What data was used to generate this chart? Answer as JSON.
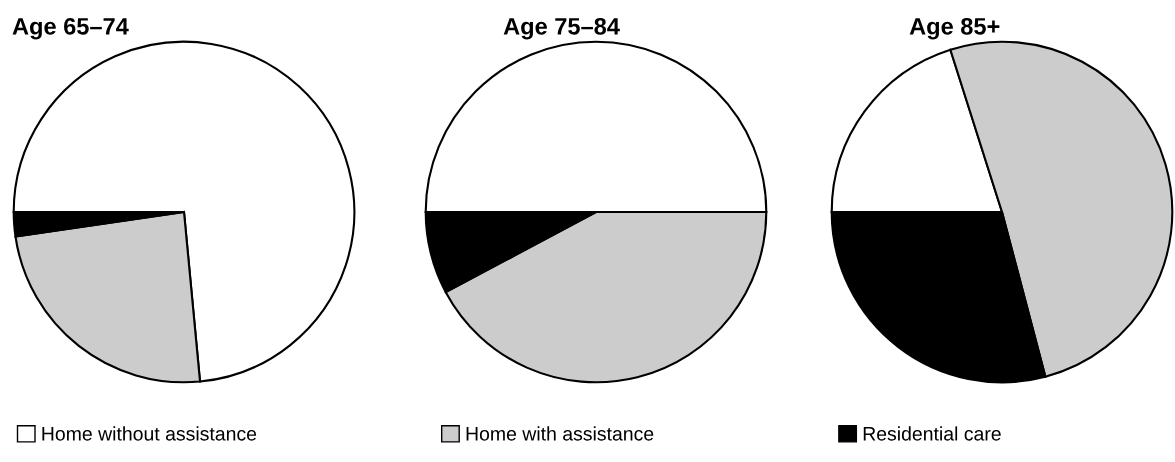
{
  "chart_data": [
    {
      "type": "pie",
      "title": "Age 65–74",
      "categories": [
        "Home without assistance",
        "Home with assistance",
        "Residential care"
      ],
      "values": [
        73.5,
        24.2,
        2.3
      ],
      "colors": [
        "#ffffff",
        "#cccccc",
        "#000000"
      ],
      "legend": "bottom"
    },
    {
      "type": "pie",
      "title": "Age 75–84",
      "categories": [
        null,
        null,
        null
      ],
      "values": [
        50,
        42.2,
        7.8
      ],
      "colors": [
        "#ffffff",
        "#cccccc",
        "#000000"
      ]
    },
    {
      "type": "pie",
      "title": "Age 85+",
      "categories": [
        null,
        null,
        null
      ],
      "values": [
        20.1,
        50.8,
        29.1
      ],
      "colors": [
        "#ffffff",
        "#cccccc",
        "#000000"
      ]
    }
  ]
}
